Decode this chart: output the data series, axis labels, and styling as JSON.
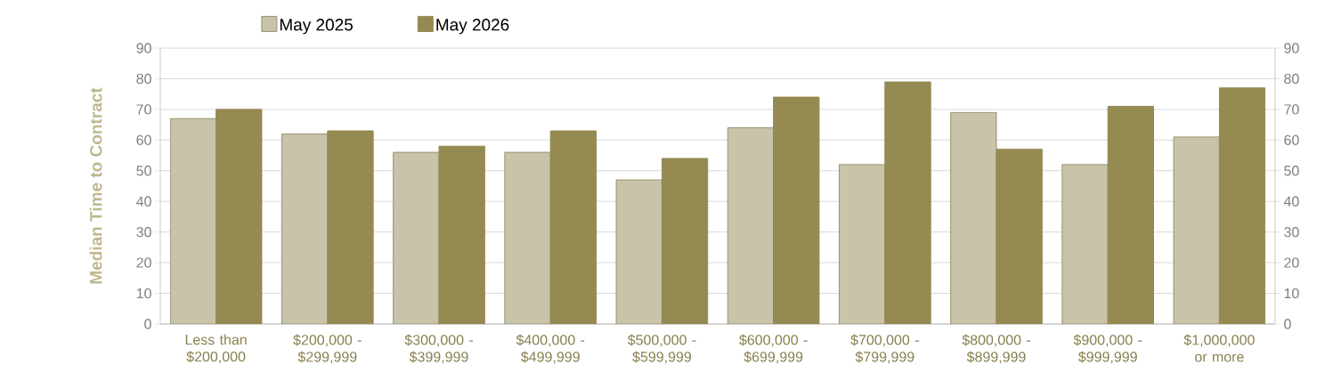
{
  "chart_data": {
    "type": "bar",
    "ylabel": "Median Time to Contract",
    "categories": [
      "Less than $200,000",
      "$200,000 - $299,999",
      "$300,000 - $399,999",
      "$400,000 - $499,999",
      "$500,000 - $599,999",
      "$600,000 - $699,999",
      "$700,000 - $799,999",
      "$800,000 - $899,999",
      "$900,000 - $999,999",
      "$1,000,000 or more"
    ],
    "series": [
      {
        "name": "May 2025",
        "color": "#c9c3a9",
        "values": [
          67,
          62,
          56,
          56,
          47,
          64,
          52,
          69,
          52,
          61
        ]
      },
      {
        "name": "May 2026",
        "color": "#948a52",
        "values": [
          70,
          63,
          58,
          63,
          54,
          74,
          79,
          57,
          71,
          77
        ]
      }
    ],
    "ylim": [
      0,
      90
    ],
    "yticks": [
      0,
      10,
      20,
      30,
      40,
      50,
      60,
      70,
      80,
      90
    ],
    "y2lim": [
      0,
      90
    ],
    "y2ticks": [
      0,
      10,
      20,
      30,
      40,
      50,
      60,
      70,
      80,
      90
    ],
    "grid": "y",
    "legend": "top"
  }
}
